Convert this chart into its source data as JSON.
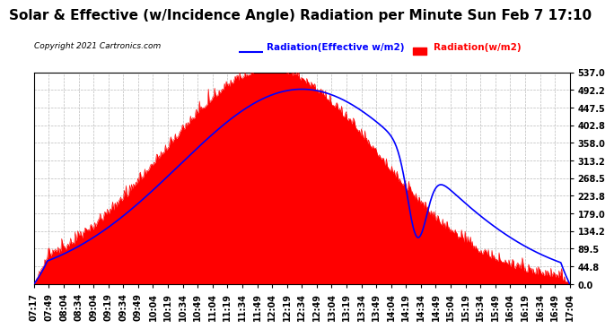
{
  "title": "Solar & Effective (w/Incidence Angle) Radiation per Minute Sun Feb 7 17:10",
  "copyright": "Copyright 2021 Cartronics.com",
  "legend_blue": "Radiation(Effective w/m2)",
  "legend_red": "Radiation(w/m2)",
  "yticks": [
    0.0,
    44.8,
    89.5,
    134.2,
    179.0,
    223.8,
    268.5,
    313.2,
    358.0,
    402.8,
    447.5,
    492.2,
    537.0
  ],
  "ymax": 537.0,
  "ymin": 0.0,
  "background_color": "#ffffff",
  "plot_bg_color": "#ffffff",
  "grid_color": "#bbbbbb",
  "bar_color": "#ff0000",
  "line_color": "#0000ff",
  "title_fontsize": 11,
  "tick_fontsize": 7,
  "n_points": 600,
  "peak_radiation": 537.0,
  "xtick_labels": [
    "07:17",
    "07:49",
    "08:04",
    "08:34",
    "09:04",
    "09:19",
    "09:34",
    "09:49",
    "10:04",
    "10:19",
    "10:34",
    "10:49",
    "11:04",
    "11:19",
    "11:34",
    "11:49",
    "12:04",
    "12:19",
    "12:34",
    "12:49",
    "13:04",
    "13:19",
    "13:34",
    "13:49",
    "14:04",
    "14:19",
    "14:34",
    "14:49",
    "15:04",
    "15:19",
    "15:34",
    "15:49",
    "16:04",
    "16:19",
    "16:34",
    "16:49",
    "17:04"
  ]
}
